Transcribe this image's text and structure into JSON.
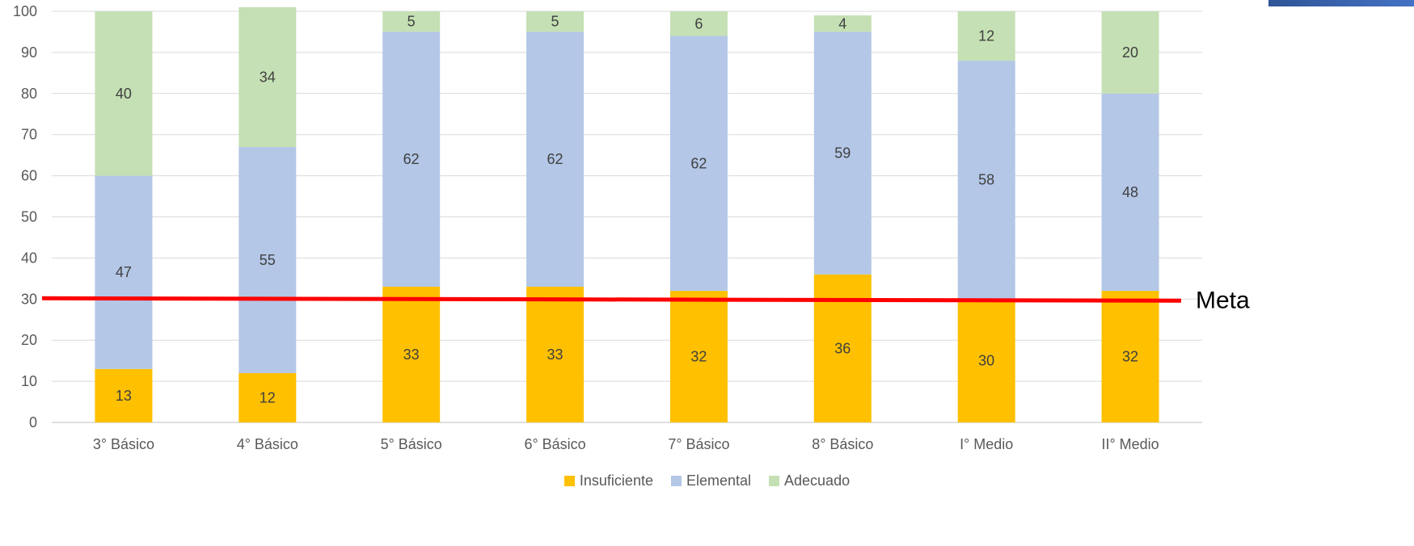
{
  "chart_data": {
    "type": "bar",
    "stacked": true,
    "title": "",
    "xlabel": "",
    "ylabel": "",
    "ylim": [
      0,
      100
    ],
    "yticks": [
      0,
      10,
      20,
      30,
      40,
      50,
      60,
      70,
      80,
      90,
      100
    ],
    "categories": [
      "3° Básico",
      "4° Básico",
      "5° Básico",
      "6° Básico",
      "7° Básico",
      "8° Básico",
      "I° Medio",
      "II° Medio"
    ],
    "series": [
      {
        "name": "Insuficiente",
        "color": "#ffc000",
        "values": [
          13,
          12,
          33,
          33,
          32,
          36,
          30,
          32
        ]
      },
      {
        "name": "Elemental",
        "color": "#b4c7e7",
        "values": [
          47,
          55,
          62,
          62,
          62,
          59,
          58,
          48
        ]
      },
      {
        "name": "Adecuado",
        "color": "#c5e0b4",
        "values": [
          40,
          34,
          5,
          5,
          6,
          4,
          12,
          20
        ]
      }
    ],
    "reference_line": {
      "label": "Meta",
      "value": 30,
      "color": "#ff0000"
    },
    "grid": true,
    "legend_position": "bottom"
  }
}
